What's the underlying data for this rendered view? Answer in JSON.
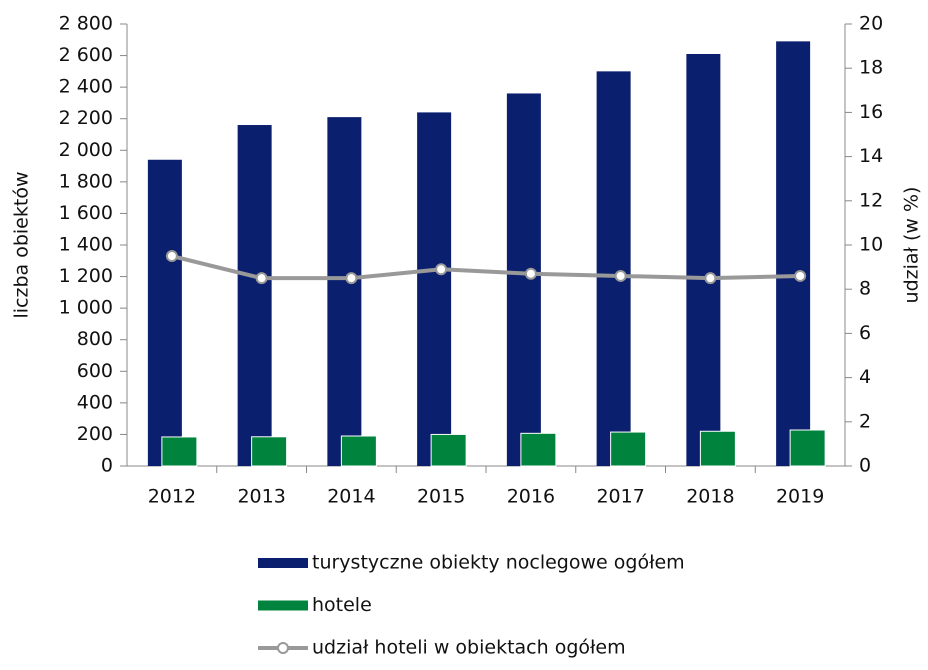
{
  "chart_data": {
    "type": "bar",
    "categories": [
      "2012",
      "2013",
      "2014",
      "2015",
      "2016",
      "2017",
      "2018",
      "2019"
    ],
    "series": [
      {
        "name": "turystyczne obiekty noclegowe ogółem",
        "color": "#0a1f6e",
        "type": "bar",
        "values": [
          1940,
          2160,
          2210,
          2240,
          2360,
          2500,
          2610,
          2690
        ]
      },
      {
        "name": "hotele",
        "color": "#00843d",
        "type": "bar",
        "values": [
          184,
          185,
          190,
          200,
          207,
          215,
          220,
          228
        ]
      },
      {
        "name": "udział hoteli w obiektach ogółem",
        "color": "#999999",
        "type": "line",
        "axis": "y2",
        "values": [
          9.5,
          8.5,
          8.5,
          8.9,
          8.7,
          8.6,
          8.5,
          8.6
        ]
      }
    ],
    "ylabel": "liczba obiektów",
    "y2label": "udział (w %)",
    "ylim": [
      0,
      2800
    ],
    "yticks": [
      0,
      200,
      400,
      600,
      800,
      {
        "value": 1000,
        "label": "1 000"
      },
      {
        "value": 1200,
        "label": "1 200"
      },
      {
        "value": 1400,
        "label": "1 400"
      },
      {
        "value": 1600,
        "label": "1 600"
      },
      {
        "value": 1800,
        "label": "1 800"
      },
      {
        "value": 2000,
        "label": "2 000"
      },
      {
        "value": 2200,
        "label": "2 200"
      },
      {
        "value": 2400,
        "label": "2 400"
      },
      {
        "value": 2600,
        "label": "2 600"
      },
      {
        "value": 2800,
        "label": "2 800"
      }
    ],
    "y2lim": [
      0,
      20
    ],
    "y2ticks": [
      0,
      2,
      4,
      6,
      8,
      10,
      12,
      14,
      16,
      18,
      20
    ],
    "legend": "bottom"
  }
}
